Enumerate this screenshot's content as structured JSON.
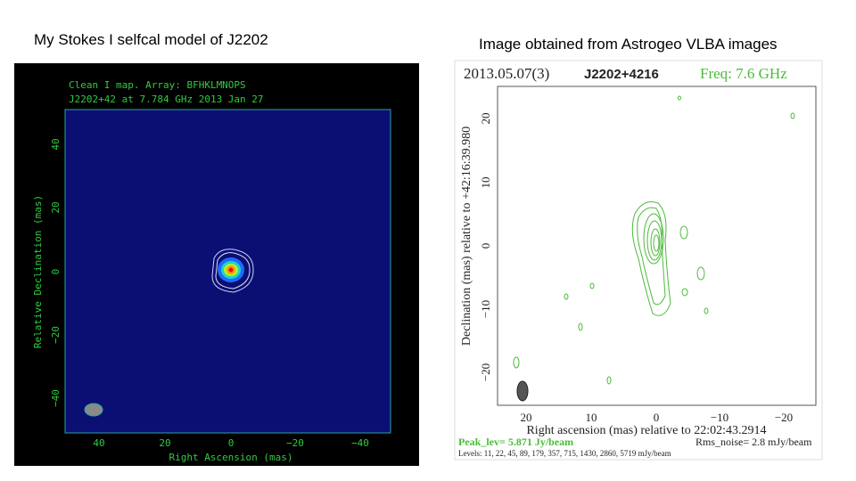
{
  "slide": {
    "left_caption": "My Stokes I selfcal model of J2202",
    "right_caption": "Image obtained from Astrogeo VLBA images",
    "left_panel": {
      "header_line_1": "Clean I map.  Array:  BFHKLMNOPS",
      "header_line_2": "J2202+42 at 7.784 GHz 2013 Jan 27",
      "x_label": "Right Ascension  (mas)",
      "y_label": "Relative Declination  (mas)",
      "x_tick_labels": [
        "40",
        "20",
        "0",
        "−20",
        "−40"
      ],
      "y_tick_labels": [
        "40",
        "20",
        "0",
        "−20",
        "−40"
      ]
    },
    "right_panel": {
      "epoch": "2013.05.07(3)",
      "source": "J2202+4216",
      "frequency": "Freq: 7.6 GHz",
      "x_label": "Right ascension (mas) relative to 22:02:43.2914",
      "y_label": "Declination (mas) relative to +42:16:39.980",
      "x_tick_labels": [
        "20",
        "10",
        "0",
        "−10",
        "−20"
      ],
      "y_tick_labels": [
        "20",
        "10",
        "0",
        "−10",
        "−20"
      ],
      "peak": "Peak_lev=  5.871 Jy/beam",
      "rms": "Rms_noise=  2.8 mJy/beam",
      "levels": "Levels: 11, 22, 45, 89, 179, 357, 715, 1430, 2860, 5719 mJy/beam"
    }
  }
}
